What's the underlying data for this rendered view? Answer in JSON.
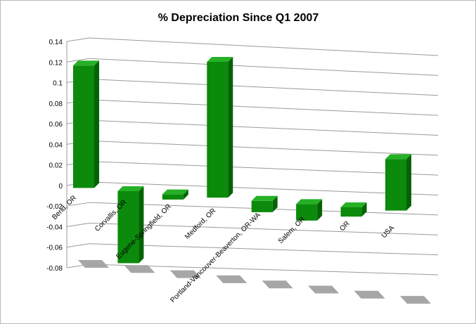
{
  "chart_data": {
    "type": "bar",
    "style": "3d-perspective-columns",
    "title": "% Depreciation Since Q1 2007",
    "xlabel": "",
    "ylabel": "",
    "ylim": [
      -0.08,
      0.14
    ],
    "yticks": [
      "0.14",
      "0.12",
      "0.1",
      "0.08",
      "0.06",
      "0.04",
      "0.02",
      "0",
      "-0.02",
      "-0.04",
      "-0.06",
      "-0.08"
    ],
    "ytick_values": [
      0.14,
      0.12,
      0.1,
      0.08,
      0.06,
      0.04,
      0.02,
      0,
      -0.02,
      -0.04,
      -0.06,
      -0.08
    ],
    "categories": [
      "Bend, OR",
      "Corvallis, OR",
      "Eugene-Springfield, OR",
      "Medford, OR",
      "Portland-Vancouver-Beaverton, OR-WA",
      "Salem, OR",
      "OR",
      "USA"
    ],
    "values": [
      0.119,
      -0.07,
      -0.005,
      0.132,
      -0.011,
      -0.016,
      -0.009,
      0.05
    ],
    "grid": true,
    "legend": "none",
    "colors": {
      "bar": "#0b8a0b",
      "bar_top": "#26b026",
      "bar_side": "#056305",
      "shadow": "#a6a6a6",
      "grid": "#9a9a9a"
    }
  }
}
